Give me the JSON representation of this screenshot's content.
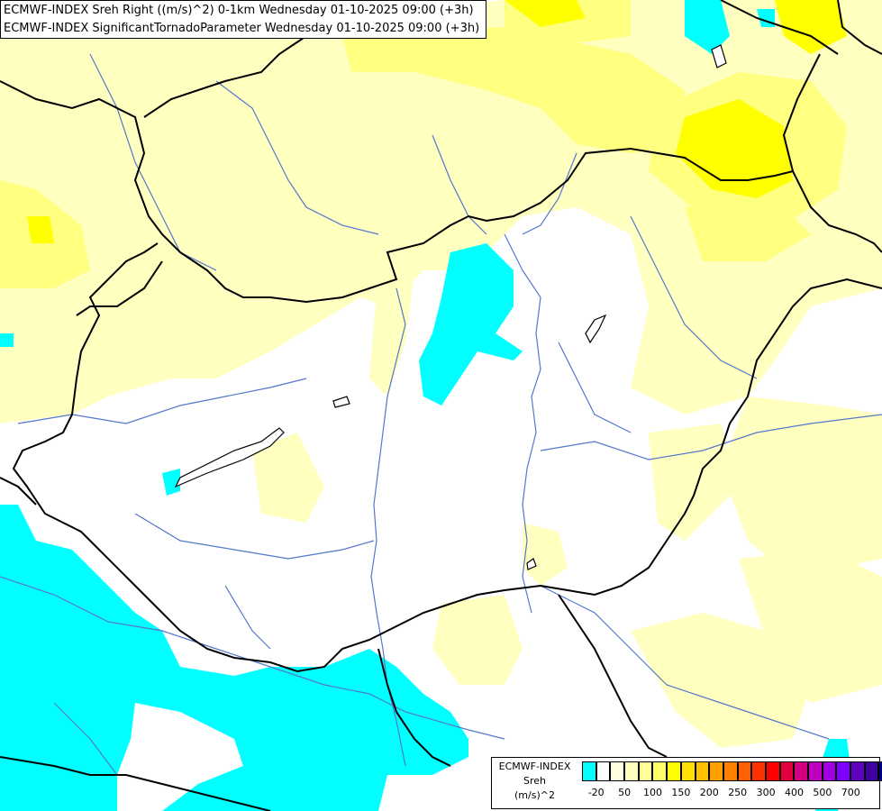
{
  "title": {
    "line1": "ECMWF-INDEX Sreh Right ((m/s)^2) 0-1km Wednesday 01-10-2025 09:00 (+3h)",
    "line2": "ECMWF-INDEX SignificantTornadoParameter Wednesday 01-10-2025 09:00 (+3h)"
  },
  "legend": {
    "title1": "ECMWF-INDEX",
    "title2": "Sreh",
    "title3": "(m/s)^2",
    "colors": [
      "#00ffff",
      "#ffffff",
      "#ffffe0",
      "#ffffc0",
      "#ffff99",
      "#ffff66",
      "#ffff00",
      "#ffe000",
      "#ffc000",
      "#ffa000",
      "#ff8000",
      "#ff6000",
      "#ff3000",
      "#ff0000",
      "#e00040",
      "#d00080",
      "#c000c0",
      "#a000e0",
      "#8000ff",
      "#6000c0",
      "#4000a0",
      "#000080"
    ],
    "labels": [
      "-20",
      "50",
      "100",
      "150",
      "200",
      "250",
      "300",
      "400",
      "500",
      "700"
    ]
  },
  "colors": {
    "cyan": "#00ffff",
    "light_yellow": "#ffffc0",
    "mid_yellow": "#ffff80",
    "bright_yellow": "#ffff00",
    "border": "#000000",
    "river": "#5577cc"
  }
}
